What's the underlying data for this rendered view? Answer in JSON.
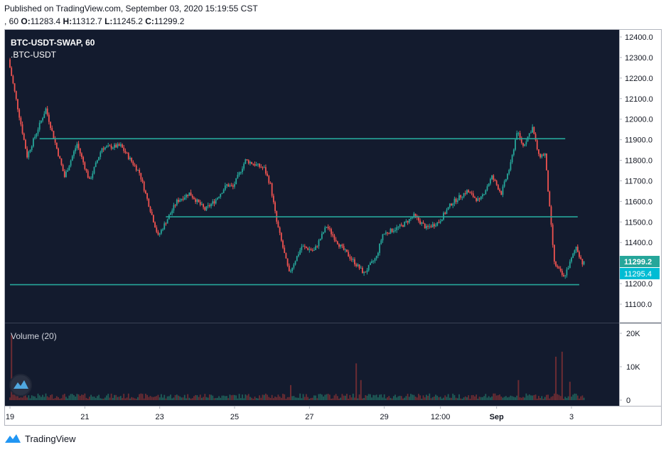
{
  "header": {
    "published": "Published on TradingView.com, September 03, 2020 15:19:55 CST",
    "interval_prefix": ", 60",
    "o_label": "O:",
    "o_value": "11283.4",
    "h_label": "H:",
    "h_value": "11312.7",
    "l_label": "L:",
    "l_value": "11245.2",
    "c_label": "C:",
    "c_value": "11299.2"
  },
  "footer": {
    "brand": "TradingView"
  },
  "colors": {
    "background": "#131b2e",
    "up": "#26a69a",
    "down": "#ef5350",
    "level_line": "#26a69a",
    "last_price_bg": "#26a69a",
    "index_price_bg": "#00bcd4",
    "axis_text": "#131722"
  },
  "chart_data": {
    "type": "candlestick",
    "symbol": "BTC-USDT-SWAP, 60",
    "overlay": ".BTC-USDT",
    "price_axis": {
      "min": 11100,
      "max": 12400,
      "ticks": [
        "12400.0",
        "12300.0",
        "12200.0",
        "12100.0",
        "12000.0",
        "11900.0",
        "11800.0",
        "11700.0",
        "11600.0",
        "11500.0",
        "11400.0",
        "11300.0",
        "11200.0",
        "11100.0"
      ]
    },
    "last_price": "11299.2",
    "index_price": "11295.4",
    "levels": [
      {
        "price": 11905,
        "from": "Aug 19 19:00",
        "to": "Sep 2 20:00"
      },
      {
        "price": 11525,
        "from": "Aug 23 04:00",
        "to": "Sep 3 04:00"
      },
      {
        "price": 11195,
        "from": "Aug 19 00:00",
        "to": "Sep 3 05:00"
      }
    ],
    "x_axis_ticks": [
      "19",
      "21",
      "23",
      "25",
      "27",
      "29",
      "12:00",
      "Sep",
      "3"
    ],
    "anchors": [
      [
        "Aug 19 00:00",
        12290
      ],
      [
        "Aug 19 12:00",
        11820
      ],
      [
        "Aug 20 00:00",
        12050
      ],
      [
        "Aug 20 12:00",
        11720
      ],
      [
        "Aug 20 20:00",
        11880
      ],
      [
        "Aug 21 04:00",
        11700
      ],
      [
        "Aug 21 12:00",
        11860
      ],
      [
        "Aug 22 00:00",
        11870
      ],
      [
        "Aug 22 12:00",
        11740
      ],
      [
        "Aug 23 00:00",
        11430
      ],
      [
        "Aug 23 12:00",
        11600
      ],
      [
        "Aug 23 20:00",
        11640
      ],
      [
        "Aug 24 06:00",
        11560
      ],
      [
        "Aug 24 12:00",
        11600
      ],
      [
        "Aug 24 20:00",
        11680
      ],
      [
        "Aug 25 00:00",
        11670
      ],
      [
        "Aug 25 08:00",
        11800
      ],
      [
        "Aug 25 20:00",
        11760
      ],
      [
        "Aug 26 00:00",
        11680
      ],
      [
        "Aug 26 04:00",
        11500
      ],
      [
        "Aug 26 12:00",
        11250
      ],
      [
        "Aug 26 20:00",
        11380
      ],
      [
        "Aug 27 04:00",
        11360
      ],
      [
        "Aug 27 12:00",
        11480
      ],
      [
        "Aug 27 20:00",
        11390
      ],
      [
        "Aug 28 04:00",
        11320
      ],
      [
        "Aug 28 12:00",
        11250
      ],
      [
        "Aug 28 20:00",
        11330
      ],
      [
        "Aug 29 00:00",
        11440
      ],
      [
        "Aug 29 12:00",
        11480
      ],
      [
        "Aug 29 20:00",
        11530
      ],
      [
        "Aug 30 04:00",
        11470
      ],
      [
        "Aug 30 12:00",
        11500
      ],
      [
        "Aug 30 20:00",
        11590
      ],
      [
        "Aug 31 06:00",
        11650
      ],
      [
        "Aug 31 14:00",
        11600
      ],
      [
        "Aug 31 22:00",
        11720
      ],
      [
        "Sep 1 04:00",
        11640
      ],
      [
        "Sep 1 10:00",
        11780
      ],
      [
        "Sep 1 14:00",
        11940
      ],
      [
        "Sep 1 18:00",
        11870
      ],
      [
        "Sep 2 00:00",
        11960
      ],
      [
        "Sep 2 04:00",
        11820
      ],
      [
        "Sep 2 08:00",
        11830
      ],
      [
        "Sep 2 14:00",
        11300
      ],
      [
        "Sep 2 20:00",
        11230
      ],
      [
        "Sep 3 00:00",
        11300
      ],
      [
        "Sep 3 04:00",
        11380
      ],
      [
        "Sep 3 08:00",
        11300
      ]
    ],
    "volume_axis": {
      "min": 0,
      "max": 20000,
      "ticks": [
        "20K",
        "10K",
        "0"
      ]
    },
    "volume_label": "Volume (20)",
    "volume_spikes": [
      [
        "Aug 19 01:00",
        19500
      ],
      [
        "Aug 19 03:00",
        6000
      ],
      [
        "Aug 26 12:00",
        4500
      ],
      [
        "Aug 28 06:00",
        11000
      ],
      [
        "Aug 28 09:00",
        6000
      ],
      [
        "Sep 1 14:00",
        6000
      ],
      [
        "Sep 2 14:00",
        13000
      ],
      [
        "Sep 2 18:00",
        14500
      ],
      [
        "Sep 2 23:00",
        5500
      ]
    ]
  }
}
